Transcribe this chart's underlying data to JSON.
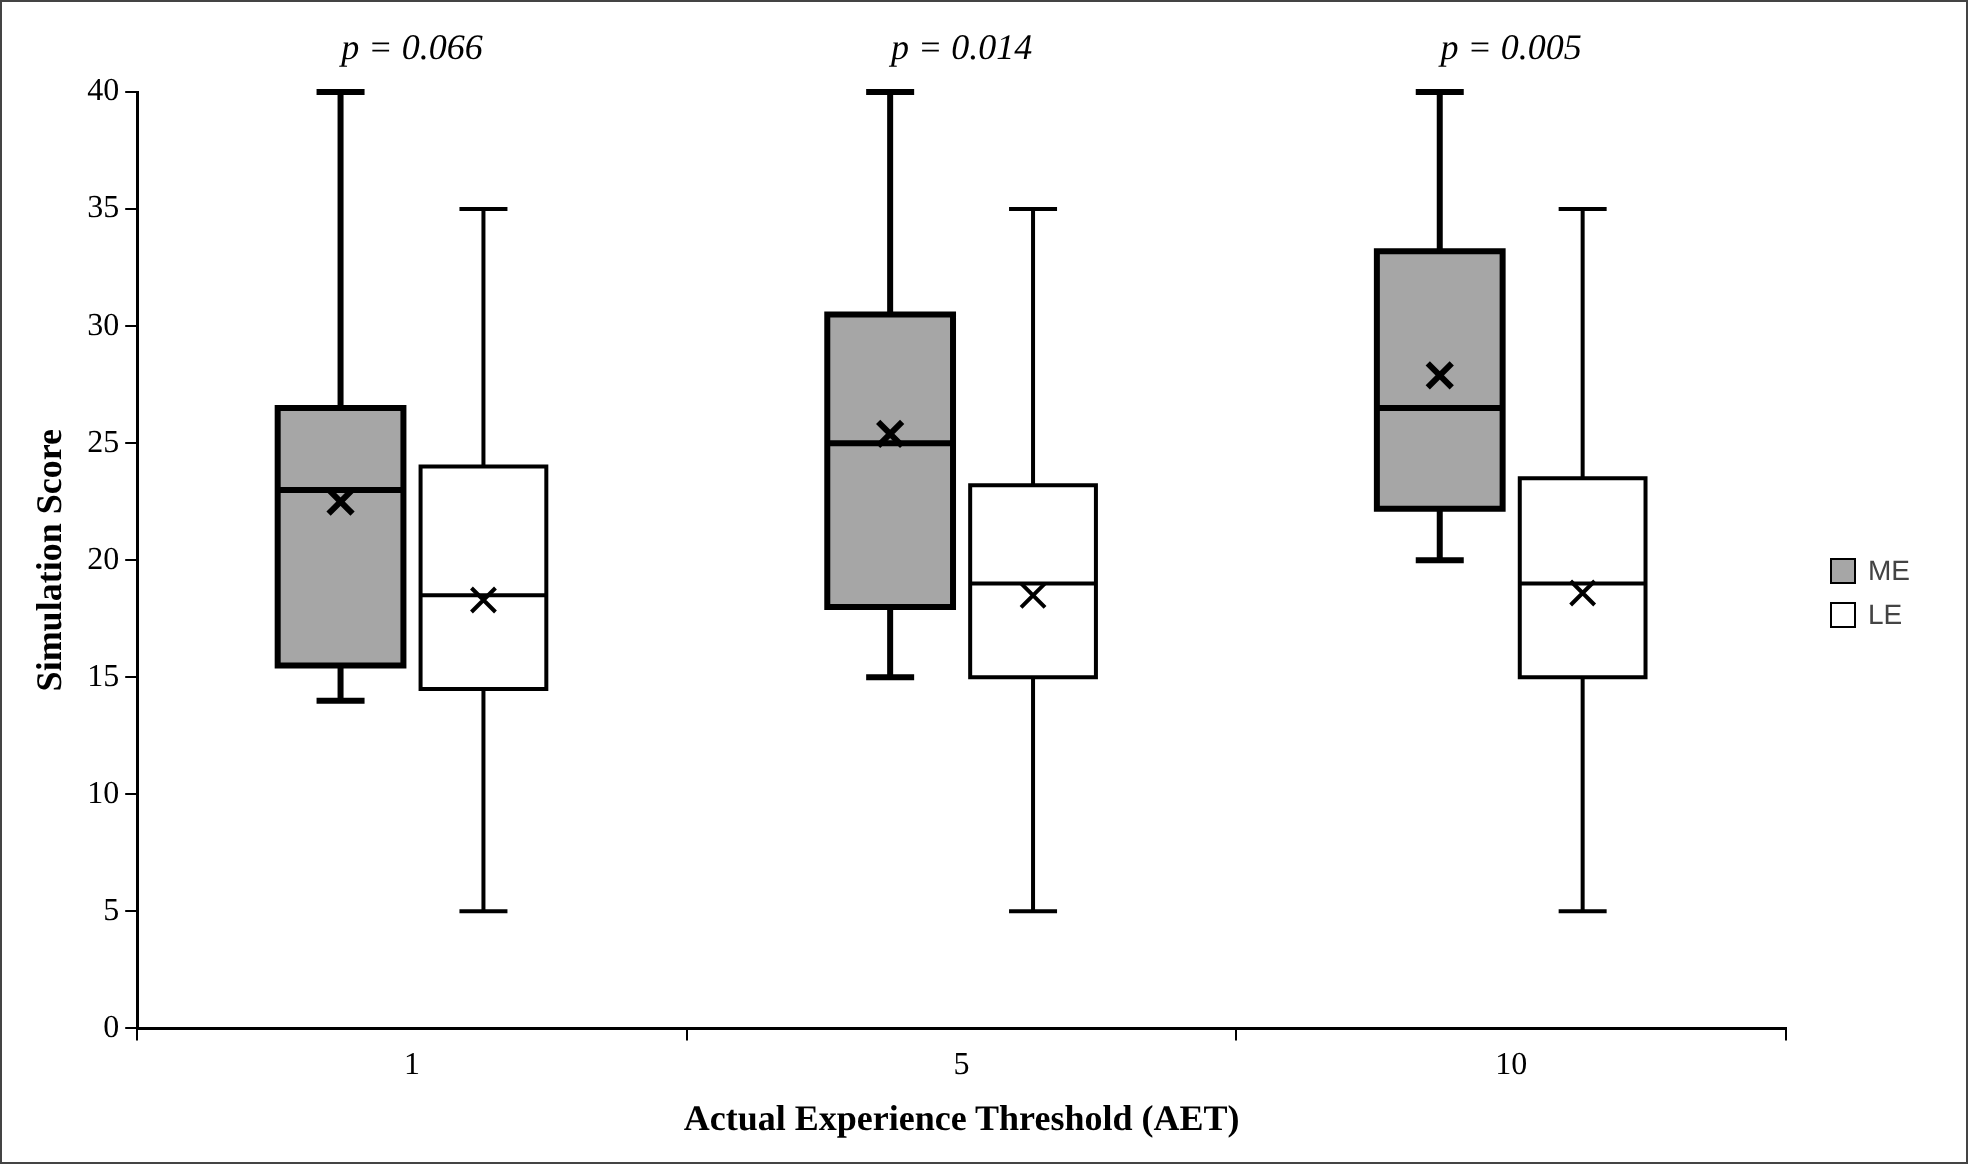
{
  "chart_data": {
    "type": "box",
    "xlabel": "Actual Experience Threshold (AET)",
    "ylabel": "Simulation Score",
    "categories": [
      "1",
      "5",
      "10"
    ],
    "series": [
      {
        "name": "ME",
        "color": "#a6a6a6",
        "boxes": [
          {
            "low": 14,
            "q1": 15.5,
            "median": 23,
            "q3": 26.5,
            "high": 40,
            "mean": 22.5
          },
          {
            "low": 15,
            "q1": 18,
            "median": 25,
            "q3": 30.5,
            "high": 40,
            "mean": 25.4
          },
          {
            "low": 20,
            "q1": 22.2,
            "median": 26.5,
            "q3": 33.2,
            "high": 40,
            "mean": 27.9
          }
        ]
      },
      {
        "name": "LE",
        "color": "#ffffff",
        "boxes": [
          {
            "low": 5,
            "q1": 14.5,
            "median": 18.5,
            "q3": 24,
            "high": 35,
            "mean": 18.3
          },
          {
            "low": 5,
            "q1": 15,
            "median": 19,
            "q3": 23.2,
            "high": 35,
            "mean": 18.5
          },
          {
            "low": 5,
            "q1": 15,
            "median": 19,
            "q3": 23.5,
            "high": 35,
            "mean": 18.6
          }
        ]
      }
    ],
    "ylim": [
      0,
      40
    ],
    "yticks": [
      0,
      5,
      10,
      15,
      20,
      25,
      30,
      35,
      40
    ],
    "grid": false,
    "legend": "right",
    "annotations": [
      "p = 0.066",
      "p = 0.014",
      "p = 0.005"
    ]
  }
}
